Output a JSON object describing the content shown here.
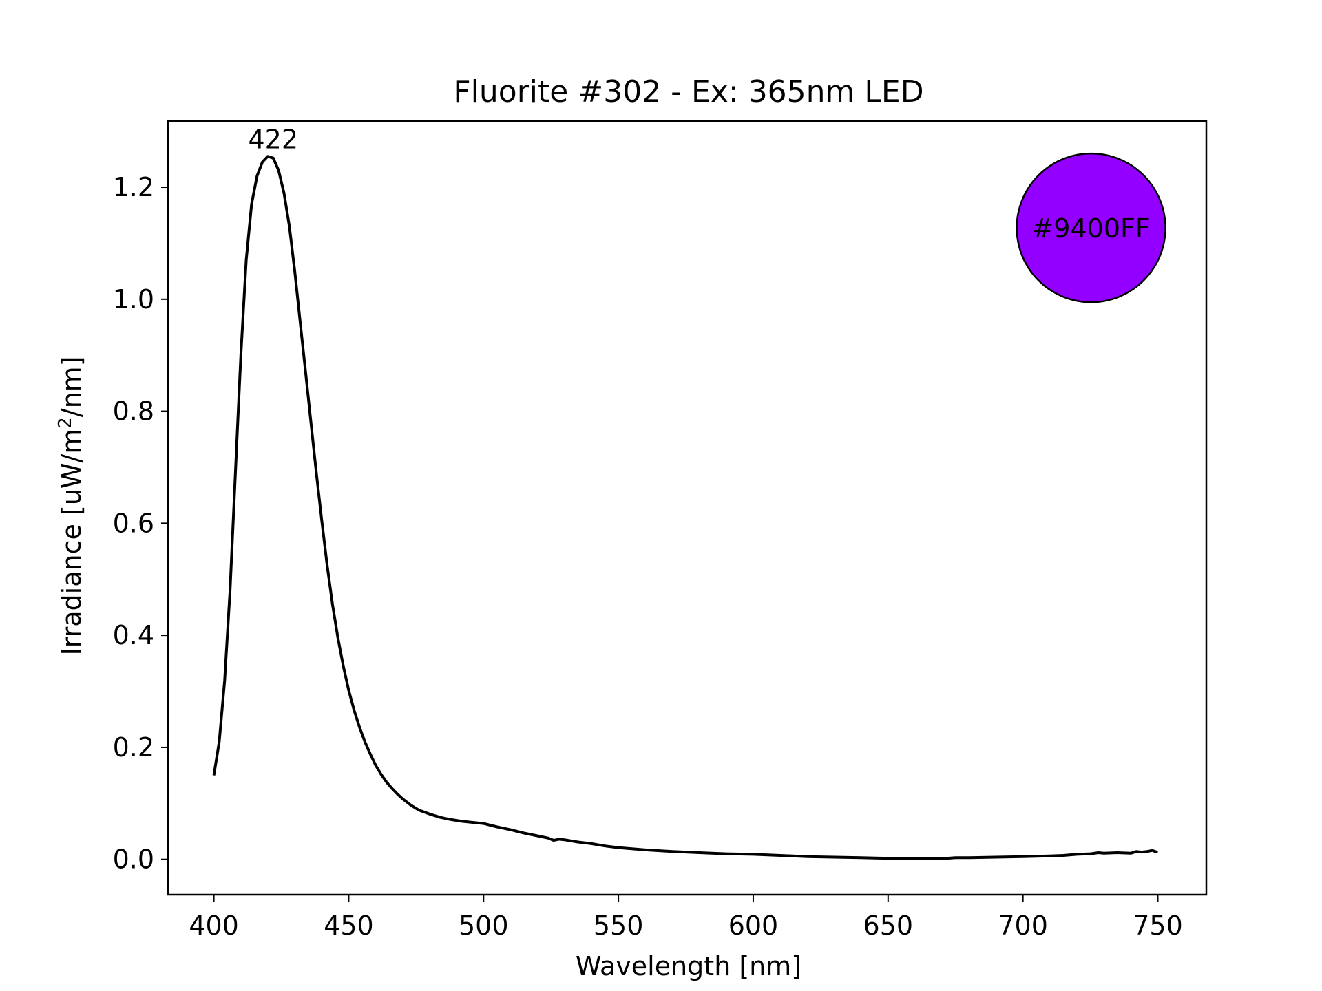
{
  "chart_data": {
    "type": "line",
    "title": "Fluorite #302 - Ex: 365nm LED",
    "xlabel": "Wavelength [nm]",
    "ylabel_prefix": "Irradiance [uW/m",
    "ylabel_sup": "2",
    "ylabel_suffix": "/nm]",
    "xlim": [
      383,
      768
    ],
    "ylim": [
      -0.063,
      1.318
    ],
    "xticks": [
      400,
      450,
      500,
      550,
      600,
      650,
      700,
      750
    ],
    "xtick_labels": [
      "400",
      "450",
      "500",
      "550",
      "600",
      "650",
      "700",
      "750"
    ],
    "yticks": [
      0.0,
      0.2,
      0.4,
      0.6,
      0.8,
      1.0,
      1.2
    ],
    "ytick_labels": [
      "0.0",
      "0.2",
      "0.4",
      "0.6",
      "0.8",
      "1.0",
      "1.2"
    ],
    "grid": false,
    "line_color": "#000000",
    "series": [
      {
        "x": [
          400,
          402,
          404,
          406,
          408,
          410,
          412,
          414,
          416,
          418,
          420,
          422,
          424,
          426,
          428,
          430,
          432,
          434,
          436,
          438,
          440,
          442,
          444,
          446,
          448,
          450,
          452,
          454,
          456,
          458,
          460,
          462,
          464,
          466,
          468,
          470,
          473,
          476,
          480,
          484,
          488,
          492,
          496,
          500,
          505,
          510,
          515,
          520,
          524,
          526,
          528,
          530,
          535,
          540,
          545,
          550,
          555,
          560,
          570,
          580,
          590,
          600,
          610,
          620,
          630,
          640,
          650,
          660,
          665,
          668,
          670,
          672,
          675,
          680,
          690,
          700,
          710,
          715,
          720,
          725,
          728,
          730,
          735,
          740,
          742,
          744,
          746,
          748,
          749,
          750
        ],
        "y": [
          0.15,
          0.21,
          0.32,
          0.48,
          0.69,
          0.9,
          1.07,
          1.17,
          1.22,
          1.245,
          1.255,
          1.252,
          1.23,
          1.19,
          1.13,
          1.05,
          0.96,
          0.87,
          0.78,
          0.69,
          0.605,
          0.525,
          0.455,
          0.395,
          0.345,
          0.302,
          0.266,
          0.236,
          0.21,
          0.188,
          0.168,
          0.152,
          0.138,
          0.127,
          0.117,
          0.108,
          0.097,
          0.088,
          0.081,
          0.075,
          0.071,
          0.068,
          0.066,
          0.064,
          0.058,
          0.053,
          0.047,
          0.042,
          0.038,
          0.034,
          0.036,
          0.035,
          0.031,
          0.028,
          0.024,
          0.021,
          0.019,
          0.017,
          0.014,
          0.012,
          0.01,
          0.009,
          0.007,
          0.005,
          0.004,
          0.003,
          0.002,
          0.002,
          0.001,
          0.002,
          0.001,
          0.002,
          0.003,
          0.003,
          0.004,
          0.005,
          0.006,
          0.007,
          0.009,
          0.01,
          0.012,
          0.011,
          0.012,
          0.011,
          0.014,
          0.013,
          0.014,
          0.016,
          0.014,
          0.013
        ]
      }
    ],
    "annotations": [
      {
        "text": "422",
        "x": 422,
        "y": 1.255
      }
    ],
    "swatch": {
      "label": "#9400FF",
      "color": "#9400FF"
    }
  }
}
